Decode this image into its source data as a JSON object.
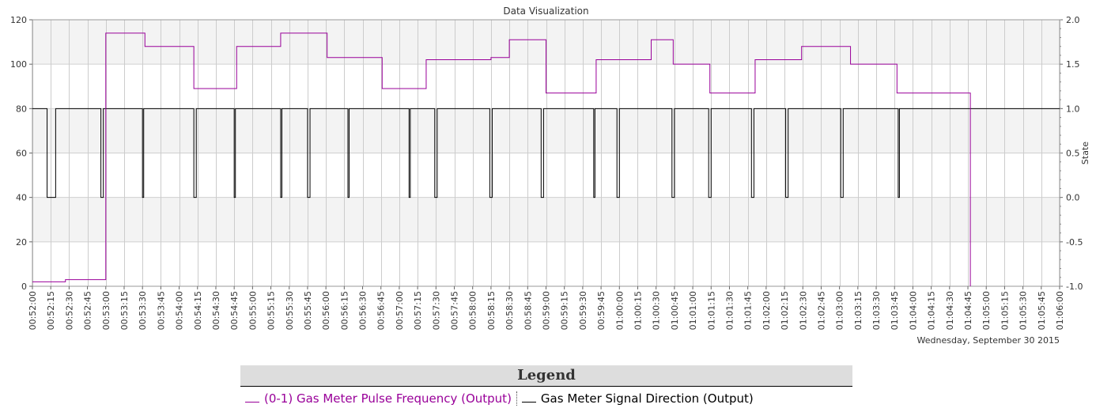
{
  "chart_data": {
    "type": "line",
    "title": "Data Visualization",
    "date_label": "Wednesday, September 30 2015",
    "y_left": {
      "ticks": [
        "0",
        "20",
        "40",
        "60",
        "80",
        "100",
        "120"
      ],
      "min": 0,
      "max": 120
    },
    "y_right": {
      "label": "State",
      "ticks": [
        "-1.0",
        "-0.5",
        "0.0",
        "0.5",
        "1.0",
        "1.5",
        "2.0"
      ],
      "min": -1,
      "max": 2
    },
    "x_ticks": [
      "00:52:00",
      "00:52:15",
      "00:52:30",
      "00:52:45",
      "00:53:00",
      "00:53:15",
      "00:53:30",
      "00:53:45",
      "00:54:00",
      "00:54:15",
      "00:54:30",
      "00:54:45",
      "00:55:00",
      "00:55:15",
      "00:55:30",
      "00:55:45",
      "00:56:00",
      "00:56:15",
      "00:56:30",
      "00:56:45",
      "00:57:00",
      "00:57:15",
      "00:57:30",
      "00:57:45",
      "00:58:00",
      "00:58:15",
      "00:58:30",
      "00:58:45",
      "00:59:00",
      "00:59:15",
      "00:59:30",
      "00:59:45",
      "01:00:00",
      "01:00:15",
      "01:00:30",
      "01:00:45",
      "01:01:00",
      "01:01:15",
      "01:01:30",
      "01:01:45",
      "01:02:00",
      "01:02:15",
      "01:02:30",
      "01:02:45",
      "01:03:00",
      "01:03:15",
      "01:03:30",
      "01:03:45",
      "01:04:00",
      "01:04:15",
      "01:04:30",
      "01:04:45",
      "01:05:00",
      "01:05:15",
      "01:05:30",
      "01:05:45",
      "01:06:00"
    ],
    "grid": true,
    "legend_position": "bottom",
    "series": [
      {
        "name": "(0-1) Gas Meter Pulse Frequency (Output)",
        "axis": "left",
        "color": "#990099",
        "step": [
          [
            "00:52:00",
            2
          ],
          [
            "00:52:12",
            2
          ],
          [
            "00:52:27",
            3
          ],
          [
            "00:53:00",
            114
          ],
          [
            "00:53:32",
            108
          ],
          [
            "00:54:12",
            89
          ],
          [
            "00:54:47",
            108
          ],
          [
            "00:55:23",
            114
          ],
          [
            "00:56:01",
            103
          ],
          [
            "00:56:46",
            89
          ],
          [
            "00:57:22",
            102
          ],
          [
            "00:58:30",
            111
          ],
          [
            "00:58:15",
            103
          ],
          [
            "00:59:00",
            87
          ],
          [
            "00:59:41",
            102
          ],
          [
            "01:00:26",
            111
          ],
          [
            "01:00:44",
            100
          ],
          [
            "01:01:14",
            87
          ],
          [
            "01:01:51",
            102
          ],
          [
            "01:02:29",
            108
          ],
          [
            "01:03:09",
            100
          ],
          [
            "01:03:47",
            87
          ],
          [
            "01:04:47",
            0
          ]
        ]
      },
      {
        "name": "Gas Meter Signal Direction (Output)",
        "axis": "right",
        "color": "#000000",
        "pulses_low": [
          [
            "00:52:12",
            "00:52:19"
          ],
          [
            "00:52:56",
            "00:52:58"
          ],
          [
            "00:53:30",
            "00:53:31"
          ],
          [
            "00:54:12",
            "00:54:14"
          ],
          [
            "00:54:45",
            "00:54:46"
          ],
          [
            "00:55:23",
            "00:55:24"
          ],
          [
            "00:55:45",
            "00:55:47"
          ],
          [
            "00:56:18",
            "00:56:19"
          ],
          [
            "00:57:08",
            "00:57:09"
          ],
          [
            "00:57:29",
            "00:57:31"
          ],
          [
            "00:58:14",
            "00:58:16"
          ],
          [
            "00:58:56",
            "00:58:58"
          ],
          [
            "00:59:39",
            "00:59:40"
          ],
          [
            "00:59:58",
            "01:00:00"
          ],
          [
            "01:00:43",
            "01:00:45"
          ],
          [
            "01:01:13",
            "01:01:15"
          ],
          [
            "01:01:48",
            "01:01:50"
          ],
          [
            "01:02:16",
            "01:02:18"
          ],
          [
            "01:03:01",
            "01:03:03"
          ],
          [
            "01:03:48",
            "01:03:49"
          ]
        ]
      }
    ]
  },
  "legend": {
    "title": "Legend",
    "items": [
      {
        "label": "(0-1) Gas Meter Pulse Frequency (Output)",
        "color": "#990099"
      },
      {
        "label": "Gas Meter Signal Direction (Output)",
        "color": "#000000"
      }
    ]
  }
}
